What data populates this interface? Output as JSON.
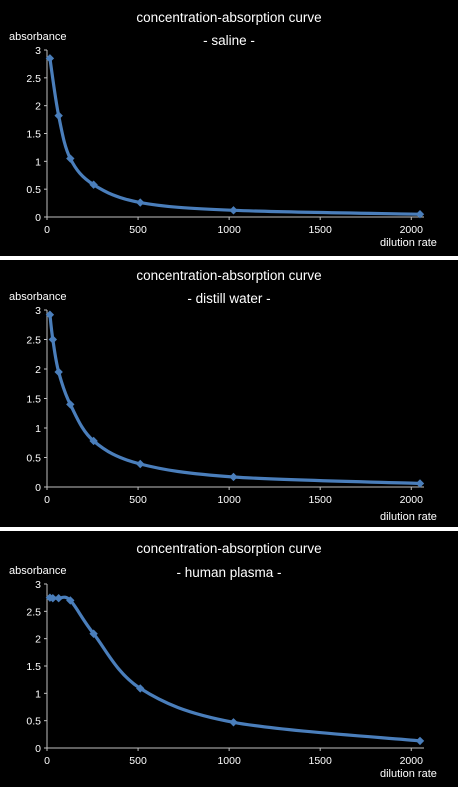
{
  "colors": {
    "series": "#4a7ebb",
    "background": "#000000",
    "text": "#ffffff"
  },
  "chart_data": [
    {
      "type": "line",
      "title": "concentration-absorption curve",
      "subtitle": "- saline -",
      "xlabel": "dilution rate",
      "ylabel": "absorbance",
      "xlim": [
        0,
        2048
      ],
      "ylim": [
        0,
        3
      ],
      "xticks": [
        "0",
        "500",
        "1000",
        "1500",
        "2000"
      ],
      "yticks": [
        "0",
        "0.5",
        "1",
        "1.5",
        "2",
        "2.5",
        "3"
      ],
      "grid": false,
      "series": [
        {
          "x": [
            16,
            64,
            128,
            256,
            512,
            1024,
            2048
          ],
          "y": [
            2.85,
            1.82,
            1.05,
            0.58,
            0.26,
            0.12,
            0.05
          ]
        }
      ]
    },
    {
      "type": "line",
      "title": "concentration-absorption curve",
      "subtitle": "- distill water -",
      "xlabel": "dilution rate",
      "ylabel": "absorbance",
      "xlim": [
        0,
        2048
      ],
      "ylim": [
        0,
        3
      ],
      "xticks": [
        "0",
        "500",
        "1000",
        "1500",
        "2000"
      ],
      "yticks": [
        "0",
        "0.5",
        "1",
        "1.5",
        "2",
        "2.5",
        "3"
      ],
      "grid": false,
      "series": [
        {
          "x": [
            16,
            32,
            64,
            128,
            256,
            512,
            1024,
            2048
          ],
          "y": [
            2.92,
            2.5,
            1.95,
            1.4,
            0.78,
            0.39,
            0.17,
            0.06
          ]
        }
      ]
    },
    {
      "type": "line",
      "title": "concentration-absorption curve",
      "subtitle": "- human plasma -",
      "xlabel": "dilution rate",
      "ylabel": "absorbance",
      "xlim": [
        0,
        2048
      ],
      "ylim": [
        0,
        3
      ],
      "xticks": [
        "0",
        "500",
        "1000",
        "1500",
        "2000"
      ],
      "yticks": [
        "0",
        "0.5",
        "1",
        "1.5",
        "2",
        "2.5",
        "3"
      ],
      "grid": false,
      "series": [
        {
          "x": [
            16,
            32,
            64,
            128,
            256,
            512,
            1024,
            2048
          ],
          "y": [
            2.75,
            2.74,
            2.74,
            2.7,
            2.09,
            1.09,
            0.47,
            0.13
          ]
        }
      ]
    }
  ]
}
